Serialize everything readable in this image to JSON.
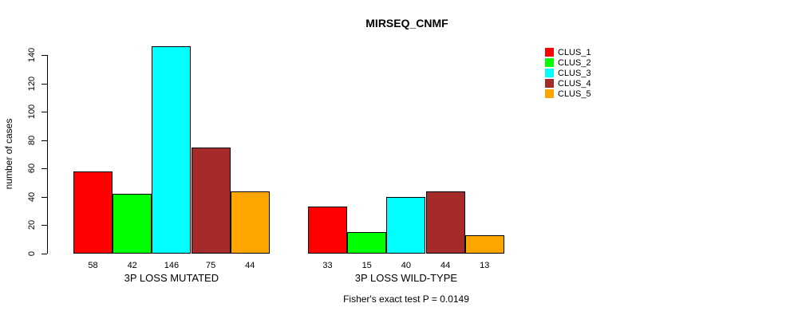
{
  "chart_data": {
    "type": "bar",
    "title": "MIRSEQ_CNMF",
    "ylabel": "number of cases",
    "xlabel": "",
    "ylim": [
      0,
      140
    ],
    "yticks": [
      0,
      20,
      40,
      60,
      80,
      100,
      120,
      140
    ],
    "grid": false,
    "legend_position": "right",
    "series": [
      {
        "name": "CLUS_1",
        "color": "#ff0000"
      },
      {
        "name": "CLUS_2",
        "color": "#00ff00"
      },
      {
        "name": "CLUS_3",
        "color": "#00ffff"
      },
      {
        "name": "CLUS_4",
        "color": "#a52a2a"
      },
      {
        "name": "CLUS_5",
        "color": "#ffa500"
      }
    ],
    "groups": [
      {
        "label": "3P LOSS MUTATED",
        "values": [
          58,
          42,
          146,
          75,
          44
        ]
      },
      {
        "label": "3P LOSS WILD-TYPE",
        "values": [
          33,
          15,
          40,
          44,
          13
        ]
      }
    ],
    "footnote": "Fisher's exact test P = 0.0149"
  }
}
